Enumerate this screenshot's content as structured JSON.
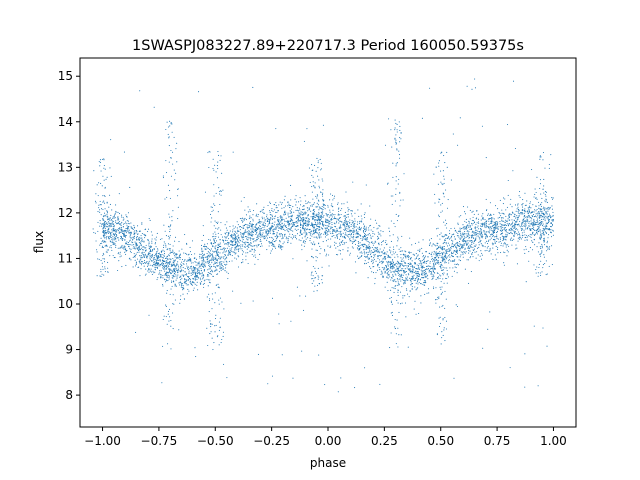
{
  "chart_data": {
    "type": "scatter",
    "title": "1SWASPJ083227.89+220717.3 Period 160050.59375s",
    "xlabel": "phase",
    "ylabel": "flux",
    "xlim": [
      -1.1,
      1.1
    ],
    "ylim": [
      7.3,
      15.4
    ],
    "xticks": [
      -1.0,
      -0.75,
      -0.5,
      -0.25,
      0.0,
      0.25,
      0.5,
      0.75,
      1.0
    ],
    "xtick_labels": [
      "−1.00",
      "−0.75",
      "−0.50",
      "−0.25",
      "0.00",
      "0.25",
      "0.50",
      "0.75",
      "1.00"
    ],
    "yticks": [
      8,
      9,
      10,
      11,
      12,
      13,
      14,
      15
    ],
    "ytick_labels": [
      "8",
      "9",
      "10",
      "11",
      "12",
      "13",
      "14",
      "15"
    ],
    "grid": false,
    "point_color": "#1f77b4",
    "series_summary": {
      "mean_curve": [
        {
          "phase": -1.0,
          "flux": 11.7
        },
        {
          "phase": -0.9,
          "flux": 11.5
        },
        {
          "phase": -0.8,
          "flux": 11.1
        },
        {
          "phase": -0.7,
          "flux": 10.8
        },
        {
          "phase": -0.6,
          "flux": 10.7
        },
        {
          "phase": -0.5,
          "flux": 11.0
        },
        {
          "phase": -0.4,
          "flux": 11.4
        },
        {
          "phase": -0.3,
          "flux": 11.6
        },
        {
          "phase": -0.2,
          "flux": 11.7
        },
        {
          "phase": -0.1,
          "flux": 11.8
        },
        {
          "phase": 0.0,
          "flux": 11.8
        },
        {
          "phase": 0.1,
          "flux": 11.6
        },
        {
          "phase": 0.2,
          "flux": 11.2
        },
        {
          "phase": 0.3,
          "flux": 10.8
        },
        {
          "phase": 0.4,
          "flux": 10.7
        },
        {
          "phase": 0.5,
          "flux": 11.0
        },
        {
          "phase": 0.6,
          "flux": 11.4
        },
        {
          "phase": 0.7,
          "flux": 11.6
        },
        {
          "phase": 0.8,
          "flux": 11.7
        },
        {
          "phase": 0.9,
          "flux": 11.8
        },
        {
          "phase": 1.0,
          "flux": 11.8
        }
      ],
      "scatter_spread": 0.25,
      "outlier_columns": [
        {
          "phase": -1.0,
          "flux_min": 10.6,
          "flux_max": 13.2
        },
        {
          "phase": -0.7,
          "flux_min": 9.0,
          "flux_max": 14.1
        },
        {
          "phase": -0.5,
          "flux_min": 9.0,
          "flux_max": 13.4
        },
        {
          "phase": -0.05,
          "flux_min": 10.2,
          "flux_max": 13.2
        },
        {
          "phase": 0.3,
          "flux_min": 9.0,
          "flux_max": 14.1
        },
        {
          "phase": 0.5,
          "flux_min": 9.0,
          "flux_max": 13.4
        },
        {
          "phase": 0.95,
          "flux_min": 10.6,
          "flux_max": 13.4
        }
      ],
      "approx_point_count": 5000
    }
  }
}
